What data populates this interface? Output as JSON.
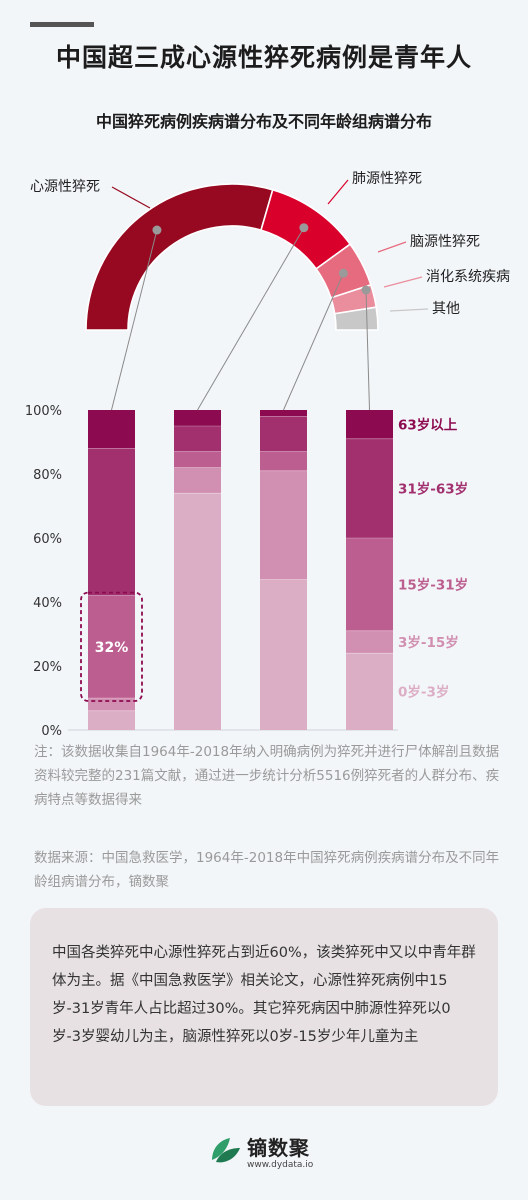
{
  "page": {
    "title": "中国超三成心源性猝死病例是青年人",
    "subtitle": "中国猝死病例疾病谱分布及不同年龄组病谱分布"
  },
  "chart_data": [
    {
      "type": "pie",
      "variant": "semi-donut",
      "slices": [
        {
          "name": "心源性猝死",
          "value": 59,
          "color": "#960920"
        },
        {
          "name": "肺源性猝死",
          "value": 21,
          "color": "#d9002b"
        },
        {
          "name": "脑源性猝死",
          "value": 10,
          "color": "#e66b7e"
        },
        {
          "name": "消化系统疾病",
          "value": 5,
          "color": "#ea8e9d"
        },
        {
          "name": "其他",
          "value": 5,
          "color": "#c8c8c8"
        }
      ]
    },
    {
      "type": "bar",
      "stacked": true,
      "categories": [
        "心源性猝死",
        "肺源性猝死",
        "脑源性猝死",
        "其他"
      ],
      "ylim": [
        0,
        100
      ],
      "yticks": [
        "0%",
        "20%",
        "40%",
        "60%",
        "80%",
        "100%"
      ],
      "legend_placement": "right",
      "series": [
        {
          "name": "0岁-3岁",
          "values": [
            6,
            74,
            47,
            24
          ],
          "color": "#dcaec6"
        },
        {
          "name": "3岁-15岁",
          "values": [
            4,
            8,
            34,
            7
          ],
          "color": "#d190b1"
        },
        {
          "name": "15岁-31岁",
          "values": [
            32,
            5,
            6,
            29
          ],
          "color": "#bc5e8f"
        },
        {
          "name": "31岁-63岁",
          "values": [
            46,
            8,
            11,
            31
          ],
          "color": "#a2306f"
        },
        {
          "name": "63岁以上",
          "values": [
            12,
            5,
            2,
            9
          ],
          "color": "#8c0a4f"
        }
      ],
      "annotation": {
        "text": "32%",
        "category": "心源性猝死",
        "series": "15岁-31岁"
      }
    }
  ],
  "notes": {
    "note": "注：该数据收集自1964年-2018年纳入明确病例为猝死并进行尸体解剖且数据资料较完整的231篇文献，通过进一步统计分析5516例猝死者的人群分布、疾病特点等数据得来",
    "source": "数据来源：中国急救医学，1964年-2018年中国猝死病例疾病谱分布及不同年龄组病谱分布，镝数聚"
  },
  "summary": "中国各类猝死中心源性猝死占到近60%，该类猝死中又以中青年群体为主。据《中国急救医学》相关论文，心源性猝死病例中15岁-31岁青年人占比超过30%。其它猝死病因中肺源性猝死以0岁-3岁婴幼儿为主，脑源性猝死以0岁-15岁少年儿童为主",
  "brand": {
    "name": "镝数聚",
    "url": "www.dydata.io"
  }
}
